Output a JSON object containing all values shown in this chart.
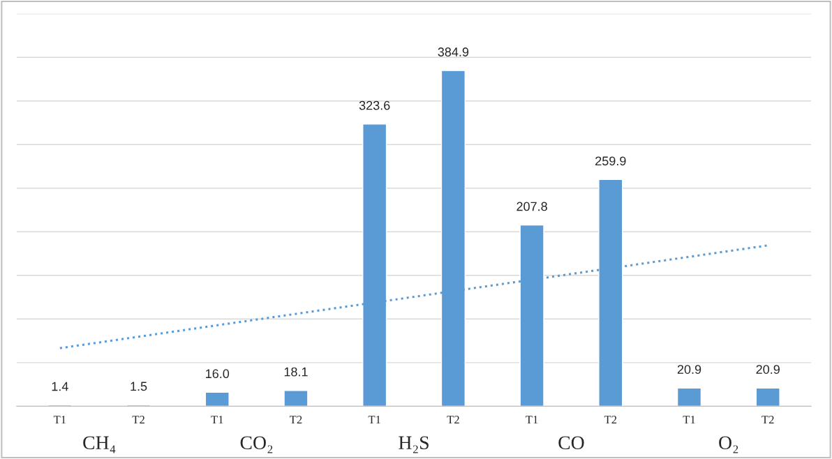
{
  "chart_data": {
    "type": "bar",
    "categories": [
      "T1",
      "T2",
      "T1",
      "T2",
      "T1",
      "T2",
      "T1",
      "T2",
      "T1",
      "T2"
    ],
    "series": [
      {
        "color": "#5b9bd5",
        "values": [
          1.4,
          1.5,
          16.0,
          18.1,
          323.6,
          384.9,
          207.8,
          259.9,
          20.9,
          20.9
        ],
        "value_labels": [
          "1.4",
          "1.5",
          "16.0",
          "18.1",
          "323.6",
          "384.9",
          "207.8",
          "259.9",
          "20.9",
          "20.9"
        ]
      },
      {
        "type": "line",
        "color": "#5b9bd5",
        "values": [
          66.6,
          79.7,
          92.8,
          105.9,
          118.9,
          132.0,
          145.1,
          158.2,
          171.3,
          184.4
        ],
        "line_style": "dotted"
      }
    ],
    "ylim": [
      0,
      450
    ],
    "yticks": [
      {
        "value": 0,
        "label": null
      },
      {
        "value": 50,
        "label": null
      },
      {
        "value": 100,
        "label": null
      },
      {
        "value": 150,
        "label": null
      },
      {
        "value": 200,
        "label": null
      },
      {
        "value": 250,
        "label": null
      },
      {
        "value": 300,
        "label": null
      },
      {
        "value": 350,
        "label": null
      },
      {
        "value": 400,
        "label": null
      },
      {
        "value": 450,
        "label": null
      }
    ],
    "grid": "y",
    "tick_labels": "x",
    "annotations": [
      "CH₄",
      "CO₂",
      "H₂S",
      "CO",
      "O₂"
    ]
  }
}
